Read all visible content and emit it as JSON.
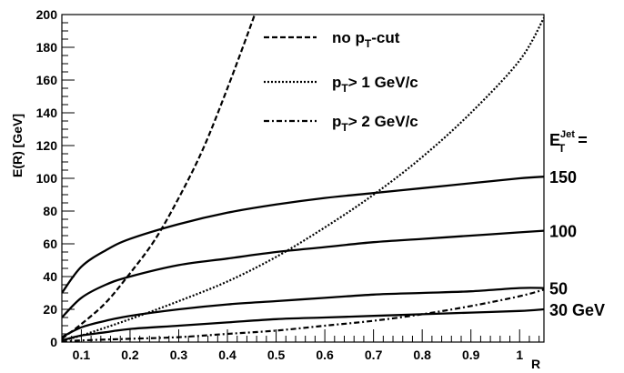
{
  "chart_data": {
    "type": "line",
    "xlabel": "R",
    "ylabel": "E(R) [GeV]",
    "xlim": [
      0.06,
      1.05
    ],
    "ylim": [
      0,
      200
    ],
    "x_ticks": [
      "0.1",
      "0.2",
      "0.3",
      "0.4",
      "0.5",
      "0.6",
      "0.7",
      "0.8",
      "0.9",
      "1"
    ],
    "y_ticks": [
      "0",
      "20",
      "40",
      "60",
      "80",
      "100",
      "120",
      "140",
      "160",
      "180",
      "200"
    ],
    "legend_position": "top-center",
    "legend": [
      {
        "text": "no p",
        "sub": "T",
        "rest": "-cut",
        "style": "dashed"
      },
      {
        "text": "p",
        "sub": "T",
        "rest": "> 1 GeV/c",
        "style": "dotted"
      },
      {
        "text": "p",
        "sub": "T",
        "rest": "> 2 GeV/c",
        "style": "dashdot"
      }
    ],
    "right_title": {
      "main": "E",
      "sup": "Jet",
      "sub": "T",
      "tail": "="
    },
    "right_labels": [
      "150",
      "100",
      "50",
      "30 GeV"
    ],
    "series": [
      {
        "style": "solid",
        "label_index": 0,
        "x": [
          0.06,
          0.1,
          0.15,
          0.2,
          0.3,
          0.4,
          0.5,
          0.6,
          0.7,
          0.8,
          0.9,
          1.0,
          1.05
        ],
        "y": [
          30,
          46,
          56,
          63,
          72,
          79,
          84,
          88,
          91,
          94,
          97,
          100,
          101
        ]
      },
      {
        "style": "solid",
        "label_index": 1,
        "x": [
          0.06,
          0.1,
          0.15,
          0.2,
          0.3,
          0.4,
          0.5,
          0.6,
          0.7,
          0.8,
          0.9,
          1.0,
          1.05
        ],
        "y": [
          15,
          27,
          35,
          40,
          47,
          51,
          55,
          58,
          61,
          63,
          65,
          67,
          68
        ]
      },
      {
        "style": "solid",
        "label_index": 2,
        "x": [
          0.06,
          0.1,
          0.15,
          0.2,
          0.3,
          0.4,
          0.5,
          0.6,
          0.7,
          0.8,
          0.9,
          1.0,
          1.05
        ],
        "y": [
          3,
          9,
          13,
          16,
          20,
          23,
          25,
          27,
          29,
          30,
          31,
          33,
          33
        ]
      },
      {
        "style": "solid",
        "label_index": 3,
        "x": [
          0.06,
          0.1,
          0.15,
          0.2,
          0.3,
          0.4,
          0.5,
          0.6,
          0.7,
          0.8,
          0.9,
          1.0,
          1.05
        ],
        "y": [
          1,
          4,
          6,
          8,
          10,
          12,
          14,
          15,
          16,
          17,
          18,
          19,
          20
        ]
      },
      {
        "style": "dashed",
        "x": [
          0.06,
          0.1,
          0.15,
          0.2,
          0.25,
          0.3,
          0.35,
          0.4,
          0.45,
          0.455
        ],
        "y": [
          2,
          11,
          24,
          42,
          62,
          88,
          118,
          155,
          195,
          200
        ]
      },
      {
        "style": "dotted",
        "x": [
          0.06,
          0.1,
          0.2,
          0.3,
          0.4,
          0.5,
          0.6,
          0.7,
          0.8,
          0.9,
          1.0,
          1.05
        ],
        "y": [
          1,
          4,
          14,
          25,
          37,
          52,
          70,
          90,
          113,
          140,
          172,
          198
        ]
      },
      {
        "style": "dashdot",
        "x": [
          0.06,
          0.1,
          0.2,
          0.3,
          0.4,
          0.5,
          0.6,
          0.7,
          0.8,
          0.9,
          1.0,
          1.05
        ],
        "y": [
          0,
          1,
          2,
          3,
          5,
          7,
          10,
          13,
          17,
          22,
          28,
          32
        ]
      }
    ]
  }
}
